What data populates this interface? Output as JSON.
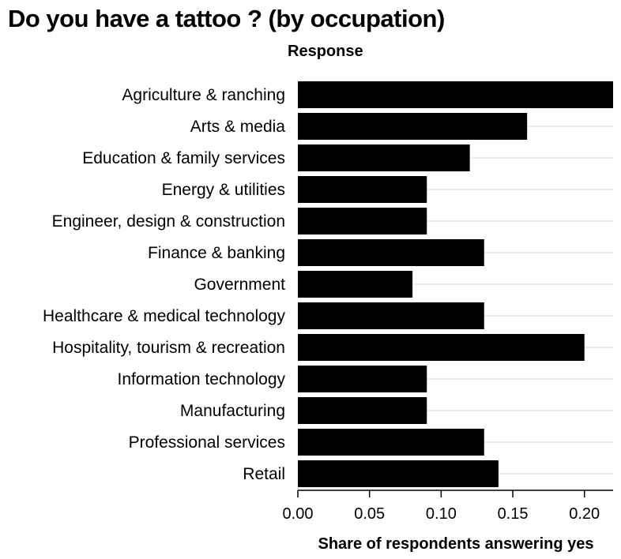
{
  "chart_data": {
    "type": "bar",
    "orientation": "horizontal",
    "title": "Do you have a tattoo ? (by occupation)",
    "subtitle": "Response",
    "xlabel": "Share of respondents answering yes",
    "ylabel": "",
    "categories": [
      "Agriculture & ranching",
      "Arts & media",
      "Education & family services",
      "Energy & utilities",
      "Engineer, design & construction",
      "Finance & banking",
      "Government",
      "Healthcare & medical technology",
      "Hospitality, tourism & recreation",
      "Information technology",
      "Manufacturing",
      "Professional services",
      "Retail"
    ],
    "values": [
      0.22,
      0.16,
      0.12,
      0.09,
      0.09,
      0.13,
      0.08,
      0.13,
      0.2,
      0.09,
      0.09,
      0.13,
      0.14
    ],
    "xlim": [
      0,
      0.22
    ],
    "xticks": [
      0.0,
      0.05,
      0.1,
      0.15,
      0.2
    ],
    "xtick_labels": [
      "0.00",
      "0.05",
      "0.10",
      "0.15",
      "0.20"
    ],
    "grid": "horizontal",
    "legend": "none",
    "bar_color": "#000000",
    "grid_color": "#d9d9d9"
  }
}
